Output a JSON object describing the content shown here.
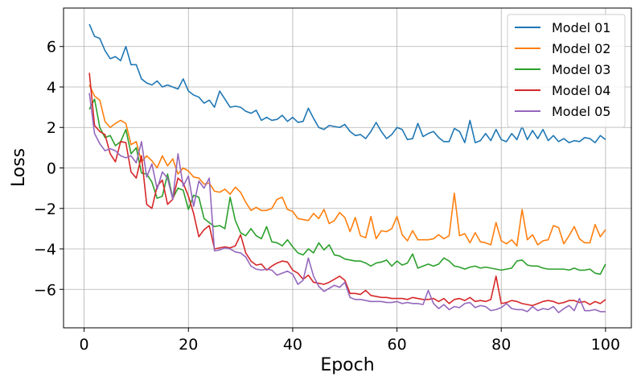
{
  "chart_data": {
    "type": "line",
    "xlabel": "Epoch",
    "ylabel": "Loss",
    "xlim": [
      -3.95,
      104.95
    ],
    "ylim": [
      -7.9,
      7.9
    ],
    "xticks": [
      0,
      20,
      40,
      60,
      80,
      100
    ],
    "yticks": [
      -6,
      -4,
      -2,
      0,
      2,
      4,
      6
    ],
    "xtick_labels": [
      "0",
      "20",
      "40",
      "60",
      "80",
      "100"
    ],
    "ytick_labels": [
      "−6",
      "−4",
      "−2",
      "0",
      "2",
      "4",
      "6"
    ],
    "grid": true,
    "legend_position": "top-right",
    "x": [
      1,
      2,
      3,
      4,
      5,
      6,
      7,
      8,
      9,
      10,
      11,
      12,
      13,
      14,
      15,
      16,
      17,
      18,
      19,
      20,
      21,
      22,
      23,
      24,
      25,
      26,
      27,
      28,
      29,
      30,
      31,
      32,
      33,
      34,
      35,
      36,
      37,
      38,
      39,
      40,
      41,
      42,
      43,
      44,
      45,
      46,
      47,
      48,
      49,
      50,
      51,
      52,
      53,
      54,
      55,
      56,
      57,
      58,
      59,
      60,
      61,
      62,
      63,
      64,
      65,
      66,
      67,
      68,
      69,
      70,
      71,
      72,
      73,
      74,
      75,
      76,
      77,
      78,
      79,
      80,
      81,
      82,
      83,
      84,
      85,
      86,
      87,
      88,
      89,
      90,
      91,
      92,
      93,
      94,
      95,
      96,
      97,
      98,
      99,
      100
    ],
    "series": [
      {
        "name": "Model 01",
        "color": "#1f77b4",
        "values": [
          7.1,
          6.5,
          6.4,
          5.8,
          5.4,
          5.5,
          5.3,
          6.0,
          5.1,
          5.1,
          4.4,
          4.2,
          4.1,
          4.3,
          4.0,
          4.1,
          4.0,
          3.9,
          4.4,
          3.8,
          3.6,
          3.5,
          3.2,
          3.35,
          3.0,
          3.8,
          3.4,
          3.0,
          3.05,
          3.0,
          2.8,
          2.7,
          2.85,
          2.35,
          2.5,
          2.35,
          2.4,
          2.6,
          2.3,
          2.5,
          2.25,
          2.3,
          2.95,
          2.45,
          2.0,
          1.9,
          2.1,
          2.05,
          2.0,
          2.15,
          1.8,
          1.6,
          1.65,
          1.45,
          1.8,
          2.25,
          1.8,
          1.45,
          1.65,
          2.0,
          1.9,
          1.4,
          1.45,
          2.2,
          1.55,
          1.7,
          1.8,
          1.5,
          1.3,
          1.3,
          1.95,
          1.8,
          1.25,
          2.35,
          1.25,
          1.35,
          1.7,
          1.35,
          1.9,
          1.4,
          1.3,
          1.7,
          1.4,
          2.05,
          1.4,
          1.85,
          1.45,
          1.9,
          1.35,
          1.6,
          1.3,
          1.45,
          1.25,
          1.35,
          1.3,
          1.5,
          1.45,
          1.25,
          1.6,
          1.4
        ]
      },
      {
        "name": "Model 02",
        "color": "#ff7f0e",
        "values": [
          4.1,
          3.55,
          3.35,
          2.3,
          2.0,
          2.2,
          2.35,
          2.2,
          1.15,
          1.3,
          0.3,
          0.6,
          0.35,
          0.0,
          0.6,
          0.1,
          0.45,
          -0.3,
          0.0,
          -0.15,
          -0.45,
          -0.5,
          -0.8,
          -0.75,
          -1.15,
          -1.2,
          -1.05,
          -1.3,
          -0.95,
          -1.2,
          -1.7,
          -2.1,
          -1.95,
          -2.1,
          -2.1,
          -2.0,
          -1.55,
          -1.45,
          -2.05,
          -2.15,
          -2.5,
          -2.55,
          -2.6,
          -2.25,
          -2.5,
          -2.05,
          -2.75,
          -2.6,
          -2.2,
          -2.45,
          -3.15,
          -2.45,
          -3.35,
          -3.45,
          -2.4,
          -3.5,
          -3.1,
          -3.15,
          -3.0,
          -2.4,
          -3.3,
          -3.6,
          -3.1,
          -3.55,
          -3.55,
          -3.55,
          -3.5,
          -3.3,
          -3.5,
          -3.35,
          -1.25,
          -3.35,
          -3.25,
          -3.7,
          -3.2,
          -3.65,
          -3.7,
          -3.8,
          -2.7,
          -3.6,
          -3.75,
          -3.55,
          -3.85,
          -2.05,
          -3.55,
          -3.3,
          -3.8,
          -3.6,
          -3.55,
          -2.85,
          -2.95,
          -3.75,
          -3.35,
          -2.9,
          -3.5,
          -3.7,
          -3.7,
          -2.8,
          -3.4,
          -3.05
        ]
      },
      {
        "name": "Model 03",
        "color": "#2ca02c",
        "values": [
          2.9,
          3.4,
          2.0,
          1.5,
          1.6,
          1.1,
          1.3,
          1.9,
          0.7,
          1.0,
          -0.25,
          -0.3,
          -0.7,
          -1.5,
          -1.4,
          -0.3,
          -1.5,
          -1.0,
          -1.1,
          -2.05,
          -1.35,
          -1.45,
          -2.5,
          -2.7,
          -2.9,
          -2.85,
          -3.0,
          -1.45,
          -2.6,
          -3.2,
          -3.35,
          -3.0,
          -3.35,
          -3.5,
          -2.9,
          -3.65,
          -3.7,
          -3.85,
          -3.55,
          -3.9,
          -4.2,
          -4.3,
          -4.0,
          -4.2,
          -3.7,
          -4.05,
          -3.8,
          -4.3,
          -4.35,
          -4.5,
          -4.55,
          -4.6,
          -4.6,
          -4.7,
          -4.85,
          -4.7,
          -4.65,
          -4.55,
          -4.85,
          -4.6,
          -4.8,
          -4.7,
          -4.25,
          -4.95,
          -4.85,
          -4.75,
          -4.85,
          -4.75,
          -4.45,
          -4.6,
          -4.85,
          -4.9,
          -5.0,
          -4.9,
          -4.85,
          -4.95,
          -4.9,
          -4.95,
          -5.0,
          -5.05,
          -5.0,
          -4.95,
          -4.6,
          -4.55,
          -4.8,
          -4.85,
          -4.85,
          -4.95,
          -5.0,
          -5.0,
          -5.0,
          -5.0,
          -5.05,
          -4.95,
          -5.05,
          -5.05,
          -5.0,
          -5.2,
          -5.25,
          -4.75
        ]
      },
      {
        "name": "Model 04",
        "color": "#d62728",
        "values": [
          4.7,
          2.1,
          1.8,
          1.65,
          0.7,
          0.3,
          1.3,
          1.25,
          -0.2,
          -0.5,
          0.6,
          -1.8,
          -2.0,
          -0.9,
          -0.6,
          -1.8,
          -1.55,
          -0.5,
          -0.75,
          -1.4,
          -2.25,
          -3.4,
          -3.05,
          -2.85,
          -4.0,
          -3.95,
          -3.9,
          -3.95,
          -3.85,
          -3.3,
          -4.2,
          -4.6,
          -4.8,
          -4.75,
          -5.05,
          -4.85,
          -4.7,
          -4.6,
          -4.65,
          -5.05,
          -5.2,
          -5.5,
          -5.3,
          -5.65,
          -5.7,
          -5.75,
          -5.65,
          -5.5,
          -5.35,
          -5.55,
          -6.2,
          -6.2,
          -6.25,
          -6.05,
          -6.3,
          -6.35,
          -6.4,
          -6.4,
          -6.45,
          -6.45,
          -6.45,
          -6.5,
          -6.4,
          -6.45,
          -6.5,
          -6.5,
          -6.45,
          -6.6,
          -6.45,
          -6.7,
          -6.5,
          -6.45,
          -6.55,
          -6.4,
          -6.6,
          -6.55,
          -6.6,
          -6.5,
          -5.35,
          -6.7,
          -6.65,
          -6.55,
          -6.6,
          -6.7,
          -6.75,
          -6.8,
          -6.7,
          -6.6,
          -6.55,
          -6.6,
          -6.7,
          -6.65,
          -6.55,
          -6.55,
          -6.65,
          -6.6,
          -6.75,
          -6.6,
          -6.7,
          -6.5
        ]
      },
      {
        "name": "Model 05",
        "color": "#9467bd",
        "values": [
          3.7,
          1.7,
          1.2,
          0.85,
          0.95,
          0.85,
          0.6,
          0.5,
          0.6,
          0.25,
          1.3,
          -0.45,
          0.2,
          -1.05,
          -0.2,
          -0.5,
          -1.55,
          0.7,
          -0.9,
          -0.4,
          -1.9,
          -0.65,
          -1.0,
          -0.5,
          -4.1,
          -4.05,
          -3.95,
          -4.0,
          -4.15,
          -4.2,
          -4.4,
          -4.85,
          -5.0,
          -5.05,
          -5.0,
          -5.05,
          -5.3,
          -5.2,
          -5.1,
          -5.25,
          -5.75,
          -5.55,
          -4.45,
          -5.35,
          -5.85,
          -6.1,
          -5.95,
          -5.8,
          -5.9,
          -5.65,
          -6.4,
          -6.5,
          -6.5,
          -6.55,
          -6.6,
          -6.6,
          -6.6,
          -6.65,
          -6.65,
          -6.6,
          -6.7,
          -6.65,
          -6.7,
          -6.7,
          -6.75,
          -6.05,
          -6.7,
          -6.95,
          -6.75,
          -7.0,
          -6.85,
          -6.9,
          -6.7,
          -6.65,
          -6.9,
          -6.8,
          -6.85,
          -7.05,
          -7.0,
          -6.9,
          -6.7,
          -6.95,
          -7.0,
          -7.0,
          -7.1,
          -6.85,
          -7.05,
          -6.95,
          -7.0,
          -6.85,
          -7.15,
          -6.95,
          -6.8,
          -7.05,
          -6.45,
          -7.05,
          -7.05,
          -7.0,
          -7.1,
          -7.1
        ]
      }
    ]
  }
}
